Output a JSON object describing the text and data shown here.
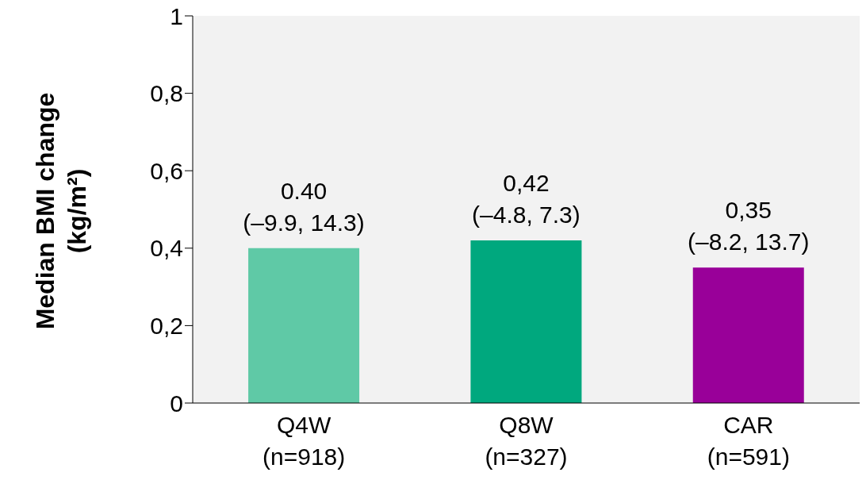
{
  "chart_data": {
    "type": "bar",
    "ylabel": "Median BMI change\n(kg/m²)",
    "categories": [
      "Q4W\n(n=918)",
      "Q8W\n(n=327)",
      "CAR\n(n=591)"
    ],
    "values": [
      0.4,
      0.42,
      0.35
    ],
    "colors": [
      "#5fc9a6",
      "#00a87e",
      "#990099"
    ],
    "value_labels": [
      "0.40\n(–9.9, 14.3)",
      "0,42\n(–4.8, 7.3)",
      "0,35\n(–8.2, 13.7)"
    ],
    "ylim": [
      0,
      1
    ],
    "yticks": [
      0,
      {
        "value": 0.2,
        "label": "0,2"
      },
      {
        "value": 0.4,
        "label": "0,4"
      },
      {
        "value": 0.6,
        "label": "0,6"
      },
      {
        "value": 0.8,
        "label": "0,8"
      },
      1
    ]
  }
}
